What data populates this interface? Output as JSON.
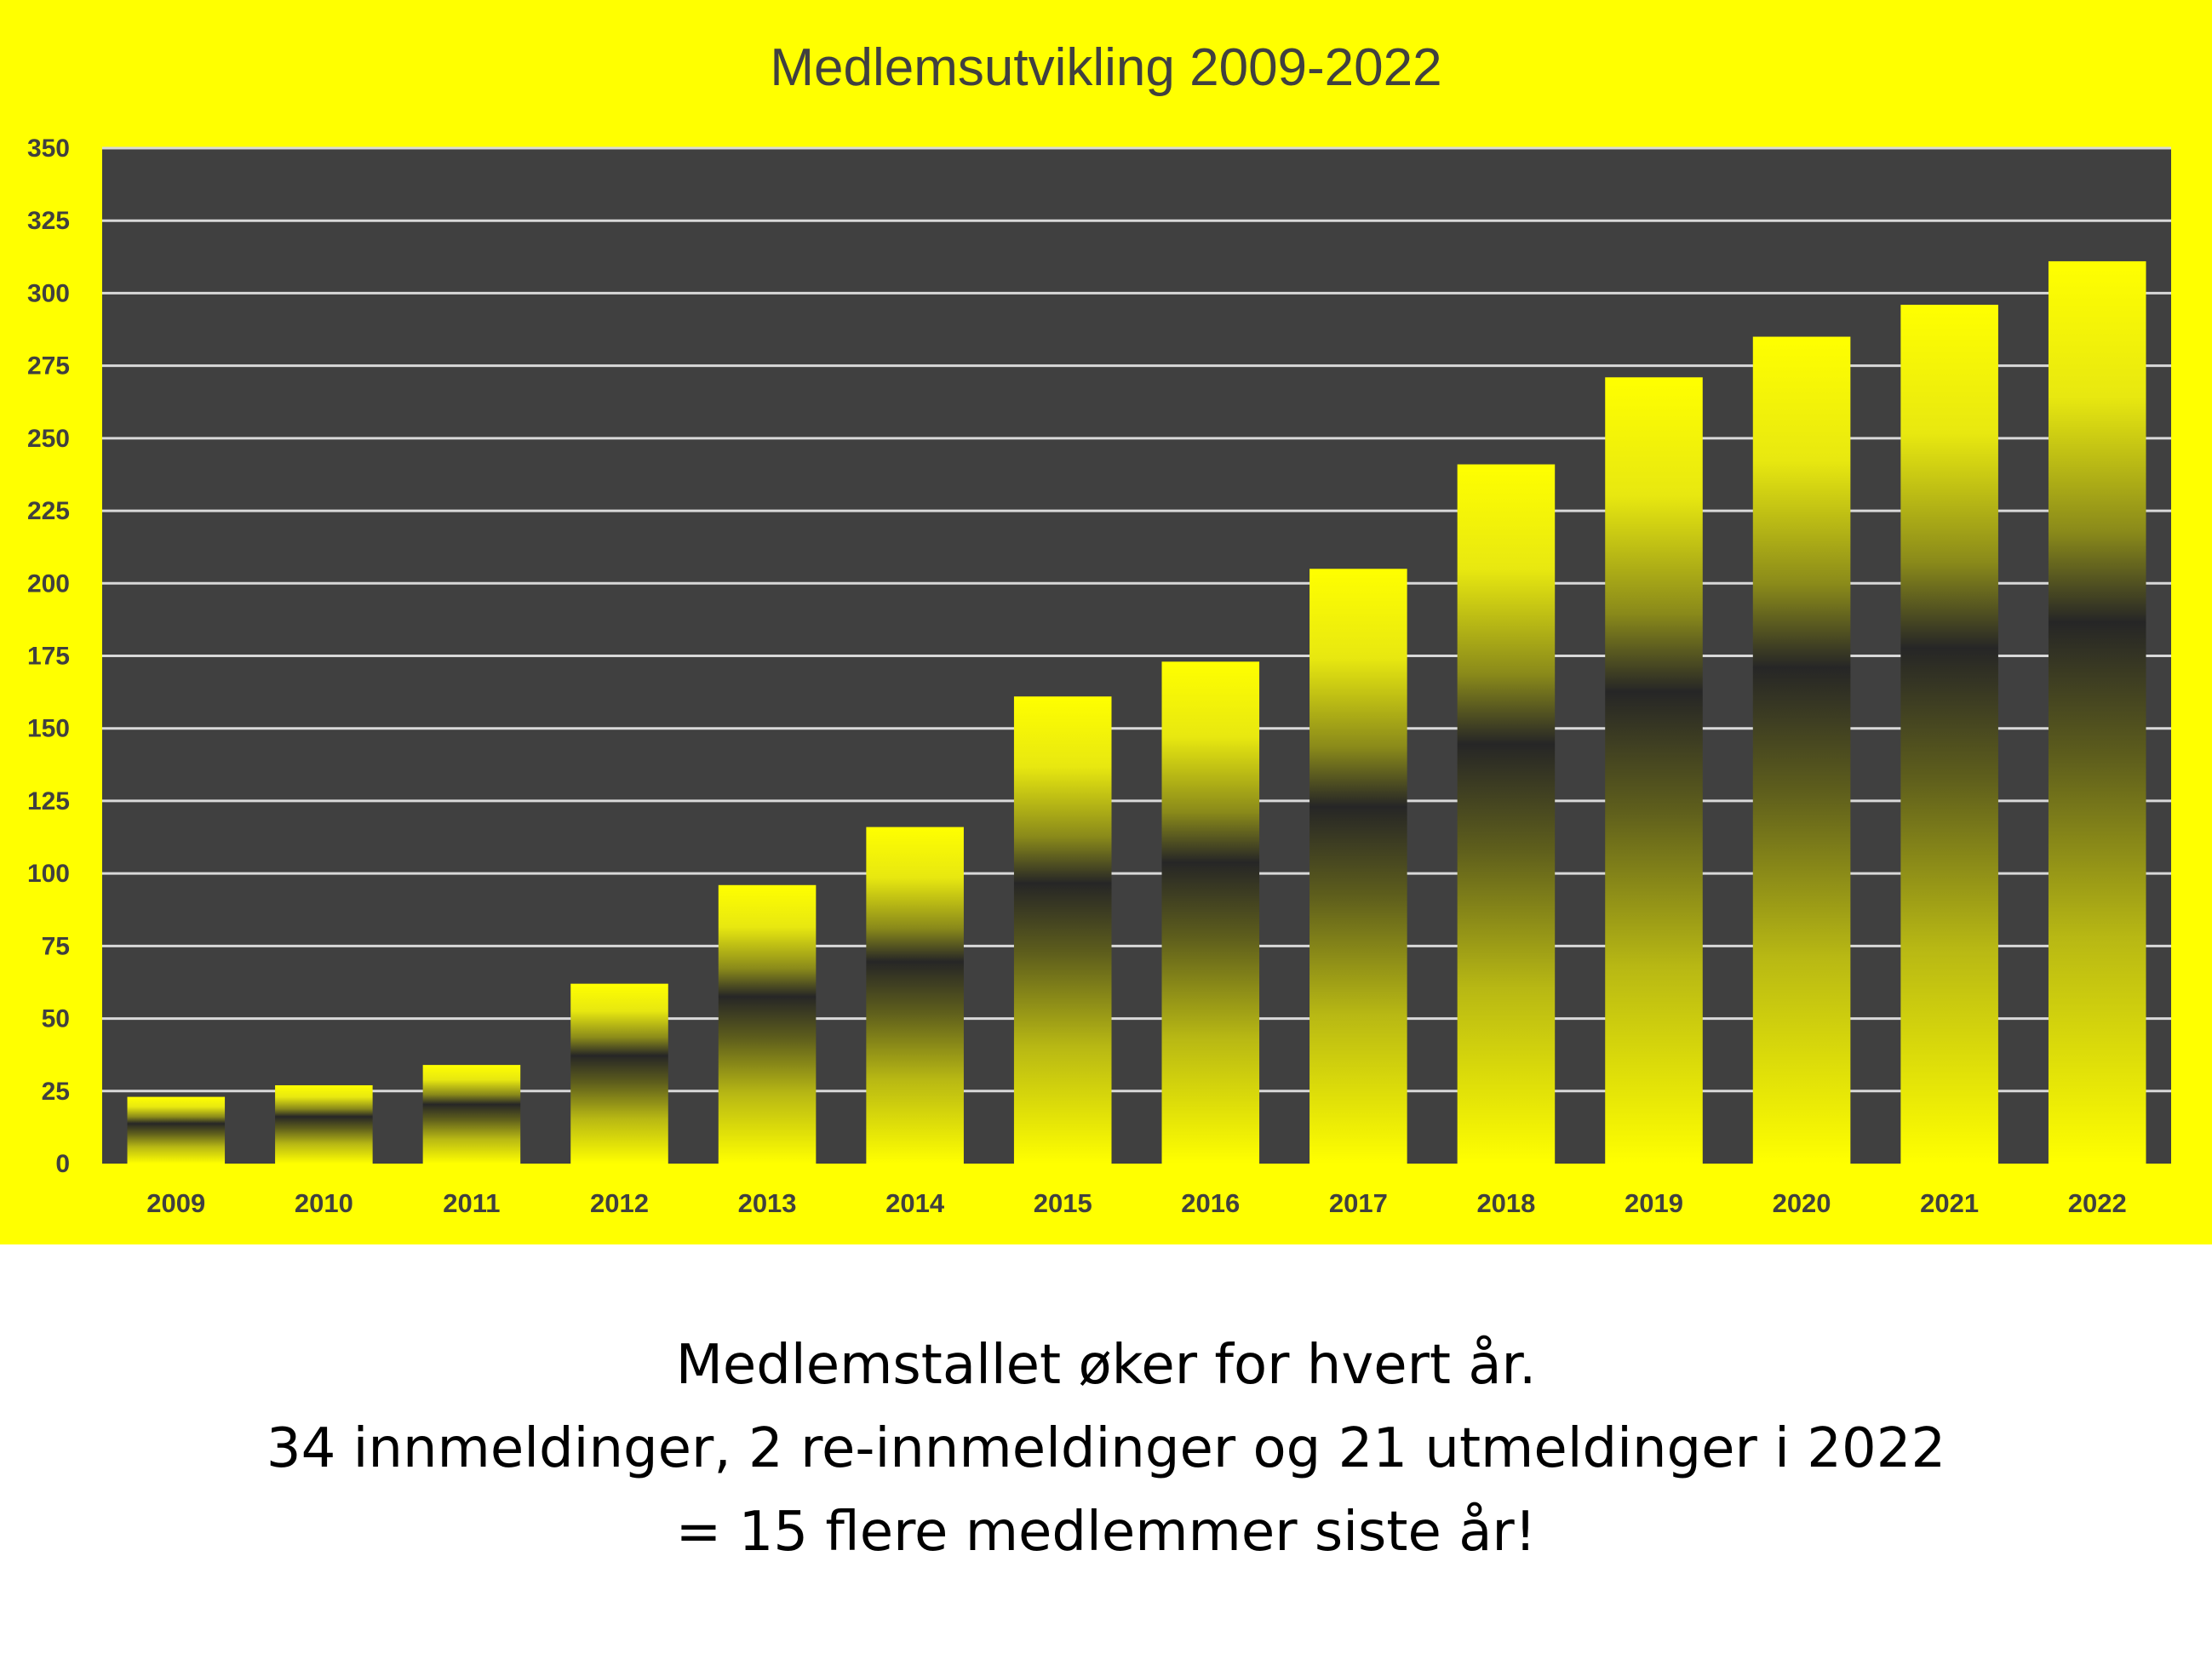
{
  "colors": {
    "panel_background": "#ffff00",
    "plot_background": "#404040",
    "gridline": "#d9d9d9",
    "bar_light": "#ffff00",
    "bar_dark": "#262626",
    "axis_text": "#404040",
    "caption_text": "#000000"
  },
  "chart_data": {
    "type": "bar",
    "title": "Medlemsutvikling 2009-2022",
    "xlabel": "",
    "ylabel": "",
    "categories": [
      "2009",
      "2010",
      "2011",
      "2012",
      "2013",
      "2014",
      "2015",
      "2016",
      "2017",
      "2018",
      "2019",
      "2020",
      "2021",
      "2022"
    ],
    "values": [
      23,
      27,
      34,
      62,
      96,
      116,
      161,
      173,
      205,
      241,
      271,
      285,
      296,
      311
    ],
    "ylim": [
      0,
      350
    ],
    "yticks": [
      "0",
      "25",
      "50",
      "75",
      "100",
      "125",
      "150",
      "175",
      "200",
      "225",
      "250",
      "275",
      "300",
      "325",
      "350"
    ],
    "grid": true,
    "legend": "none"
  },
  "caption": {
    "line1": "Medlemstallet øker for hvert år.",
    "line2": "34 innmeldinger, 2 re-innmeldinger og 21 utmeldinger i 2022",
    "line3": "= 15 flere medlemmer siste år!"
  }
}
